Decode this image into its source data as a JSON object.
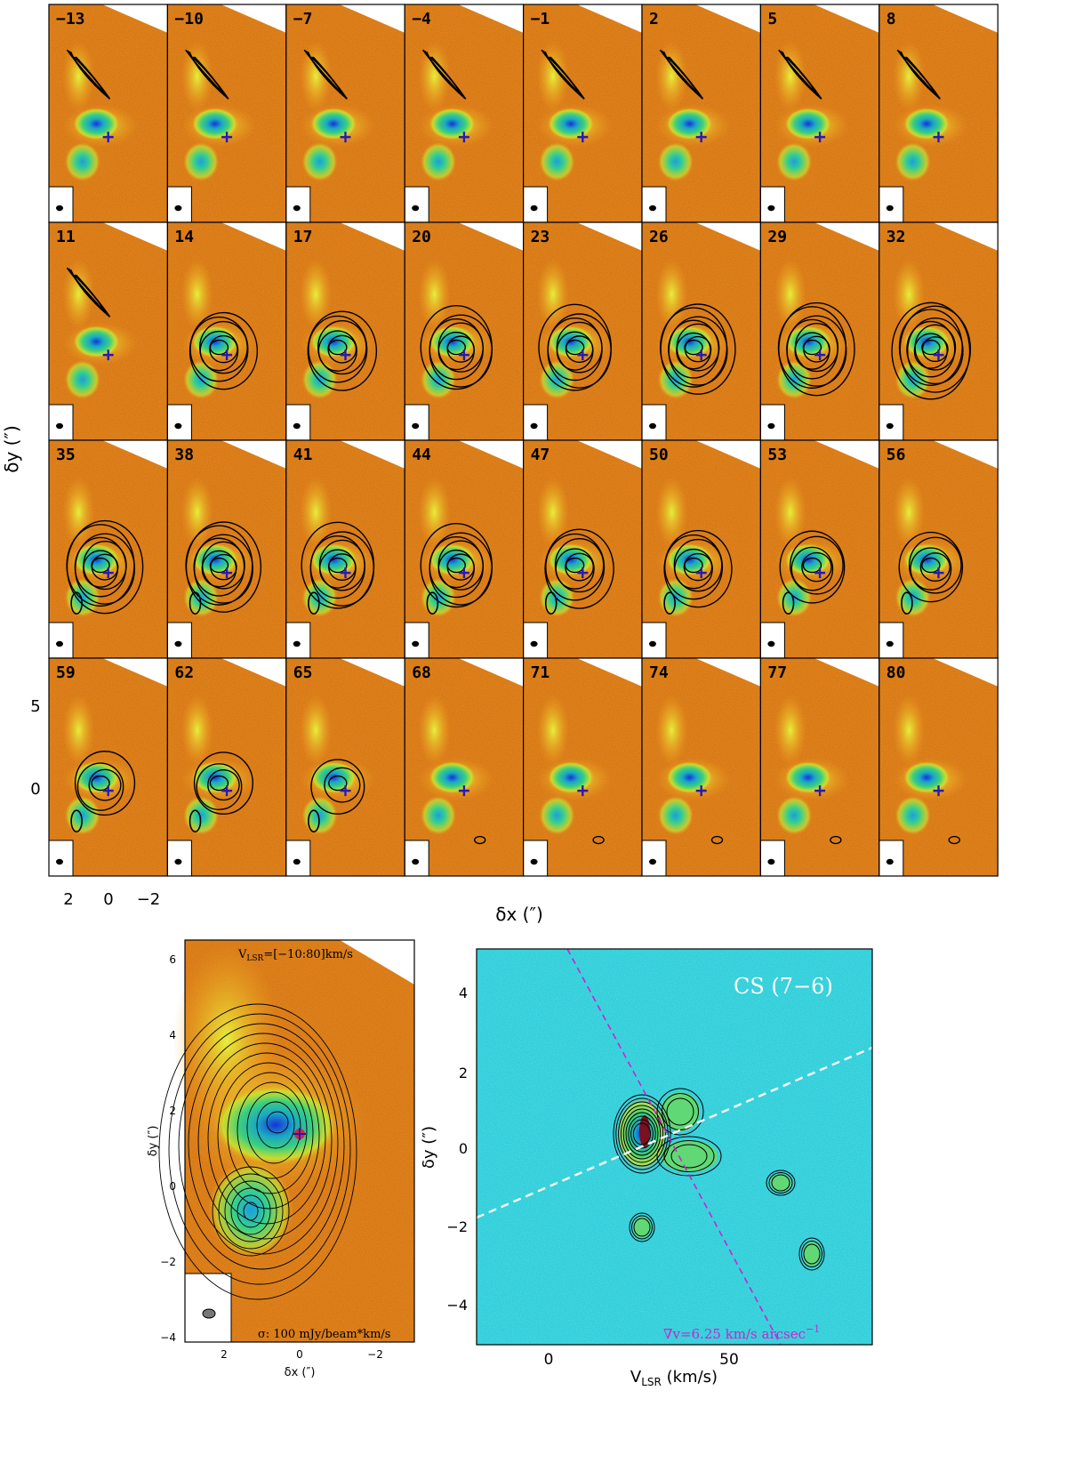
{
  "chart_data": [
    {
      "type": "heatmap",
      "panel": "channel-maps",
      "channel_velocities": [
        -13,
        -10,
        -7,
        -4,
        -1,
        2,
        5,
        8,
        11,
        14,
        17,
        20,
        23,
        26,
        29,
        32,
        35,
        38,
        41,
        44,
        47,
        50,
        53,
        56,
        59,
        62,
        65,
        68,
        71,
        74,
        77,
        80
      ],
      "channel_labels": [
        "−13",
        "−10",
        "−7",
        "−4",
        "−1",
        "2",
        "5",
        "8",
        "11",
        "14",
        "17",
        "20",
        "23",
        "26",
        "29",
        "32",
        "35",
        "38",
        "41",
        "44",
        "47",
        "50",
        "53",
        "56",
        "59",
        "62",
        "65",
        "68",
        "71",
        "74",
        "77",
        "80"
      ],
      "xlabel": "δx (″)",
      "ylabel": "δy (″)",
      "xticks": [
        "2",
        "0",
        "−2"
      ],
      "yticks": [
        "5",
        "0"
      ],
      "xlim": [
        3,
        -3
      ],
      "ylim": [
        -4.5,
        7
      ],
      "marker": {
        "x": 0,
        "y": 0,
        "symbol": "cross"
      },
      "peaks": [
        {
          "x": 0.6,
          "y": 0.7
        },
        {
          "x": 1.3,
          "y": -1.3
        }
      ]
    },
    {
      "type": "heatmap",
      "panel": "integrated-intensity",
      "annotation": "V",
      "annotation_sub": "LSR",
      "annotation_rest": "=[−10:80]km/s",
      "sigma_label": "σ: 100 mJy/beam*km/s",
      "xlabel": "δx (″)",
      "ylabel": "δy (″)",
      "xticks": [
        "2",
        "0",
        "−2"
      ],
      "yticks": [
        "6",
        "4",
        "2",
        "0",
        "−2",
        "−4"
      ],
      "xlim": [
        3.0,
        -3.0
      ],
      "ylim": [
        -4.5,
        6.5
      ],
      "marker": {
        "x": 0,
        "y": 0,
        "symbol": "cross"
      }
    },
    {
      "type": "heatmap",
      "panel": "position-velocity",
      "title": "CS (7−6)",
      "xlabel_main": "V",
      "xlabel_sub": "LSR",
      "xlabel_rest": " (km/s)",
      "ylabel": "δy (″)",
      "xticks": [
        "0",
        "50"
      ],
      "yticks": [
        "4",
        "2",
        "0",
        "−2",
        "−4"
      ],
      "xlim": [
        -20,
        90
      ],
      "ylim": [
        -5,
        5
      ],
      "gradient_label": "∇v=6.25 km/s arcsec",
      "gradient_exp": "−1",
      "gradient_value": 6.25,
      "colors": {
        "gradient_line": "#d020d0",
        "axis_line": "#ffffff",
        "background": "#3fe6f2"
      }
    }
  ]
}
